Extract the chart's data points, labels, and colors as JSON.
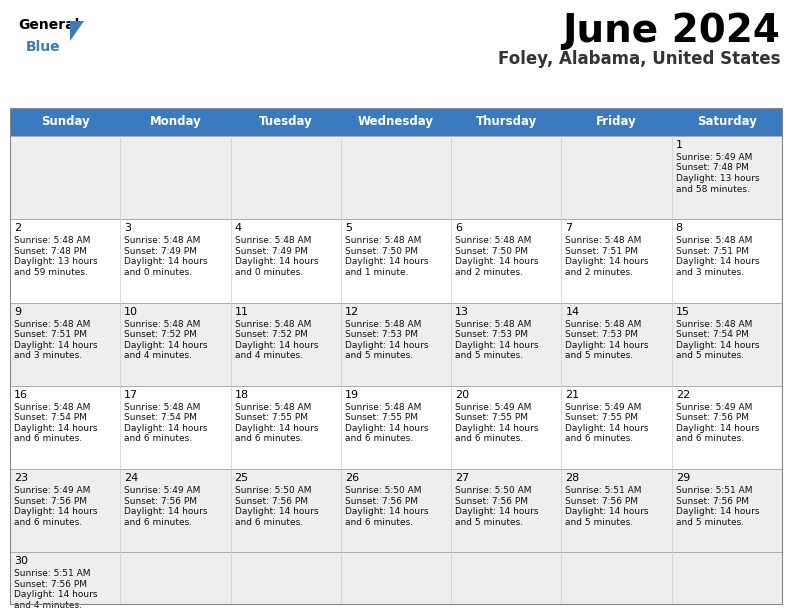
{
  "title": "June 2024",
  "subtitle": "Foley, Alabama, United States",
  "header_color": "#3a7bbf",
  "header_text_color": "#ffffff",
  "days_of_week": [
    "Sunday",
    "Monday",
    "Tuesday",
    "Wednesday",
    "Thursday",
    "Friday",
    "Saturday"
  ],
  "calendar": [
    [
      null,
      null,
      null,
      null,
      null,
      null,
      {
        "day": "1",
        "sunrise": "5:49 AM",
        "sunset": "7:48 PM",
        "daylight": "13 hours",
        "daylight2": "and 58 minutes."
      }
    ],
    [
      {
        "day": "2",
        "sunrise": "5:48 AM",
        "sunset": "7:48 PM",
        "daylight": "13 hours",
        "daylight2": "and 59 minutes."
      },
      {
        "day": "3",
        "sunrise": "5:48 AM",
        "sunset": "7:49 PM",
        "daylight": "14 hours",
        "daylight2": "and 0 minutes."
      },
      {
        "day": "4",
        "sunrise": "5:48 AM",
        "sunset": "7:49 PM",
        "daylight": "14 hours",
        "daylight2": "and 0 minutes."
      },
      {
        "day": "5",
        "sunrise": "5:48 AM",
        "sunset": "7:50 PM",
        "daylight": "14 hours",
        "daylight2": "and 1 minute."
      },
      {
        "day": "6",
        "sunrise": "5:48 AM",
        "sunset": "7:50 PM",
        "daylight": "14 hours",
        "daylight2": "and 2 minutes."
      },
      {
        "day": "7",
        "sunrise": "5:48 AM",
        "sunset": "7:51 PM",
        "daylight": "14 hours",
        "daylight2": "and 2 minutes."
      },
      {
        "day": "8",
        "sunrise": "5:48 AM",
        "sunset": "7:51 PM",
        "daylight": "14 hours",
        "daylight2": "and 3 minutes."
      }
    ],
    [
      {
        "day": "9",
        "sunrise": "5:48 AM",
        "sunset": "7:51 PM",
        "daylight": "14 hours",
        "daylight2": "and 3 minutes."
      },
      {
        "day": "10",
        "sunrise": "5:48 AM",
        "sunset": "7:52 PM",
        "daylight": "14 hours",
        "daylight2": "and 4 minutes."
      },
      {
        "day": "11",
        "sunrise": "5:48 AM",
        "sunset": "7:52 PM",
        "daylight": "14 hours",
        "daylight2": "and 4 minutes."
      },
      {
        "day": "12",
        "sunrise": "5:48 AM",
        "sunset": "7:53 PM",
        "daylight": "14 hours",
        "daylight2": "and 5 minutes."
      },
      {
        "day": "13",
        "sunrise": "5:48 AM",
        "sunset": "7:53 PM",
        "daylight": "14 hours",
        "daylight2": "and 5 minutes."
      },
      {
        "day": "14",
        "sunrise": "5:48 AM",
        "sunset": "7:53 PM",
        "daylight": "14 hours",
        "daylight2": "and 5 minutes."
      },
      {
        "day": "15",
        "sunrise": "5:48 AM",
        "sunset": "7:54 PM",
        "daylight": "14 hours",
        "daylight2": "and 5 minutes."
      }
    ],
    [
      {
        "day": "16",
        "sunrise": "5:48 AM",
        "sunset": "7:54 PM",
        "daylight": "14 hours",
        "daylight2": "and 6 minutes."
      },
      {
        "day": "17",
        "sunrise": "5:48 AM",
        "sunset": "7:54 PM",
        "daylight": "14 hours",
        "daylight2": "and 6 minutes."
      },
      {
        "day": "18",
        "sunrise": "5:48 AM",
        "sunset": "7:55 PM",
        "daylight": "14 hours",
        "daylight2": "and 6 minutes."
      },
      {
        "day": "19",
        "sunrise": "5:48 AM",
        "sunset": "7:55 PM",
        "daylight": "14 hours",
        "daylight2": "and 6 minutes."
      },
      {
        "day": "20",
        "sunrise": "5:49 AM",
        "sunset": "7:55 PM",
        "daylight": "14 hours",
        "daylight2": "and 6 minutes."
      },
      {
        "day": "21",
        "sunrise": "5:49 AM",
        "sunset": "7:55 PM",
        "daylight": "14 hours",
        "daylight2": "and 6 minutes."
      },
      {
        "day": "22",
        "sunrise": "5:49 AM",
        "sunset": "7:56 PM",
        "daylight": "14 hours",
        "daylight2": "and 6 minutes."
      }
    ],
    [
      {
        "day": "23",
        "sunrise": "5:49 AM",
        "sunset": "7:56 PM",
        "daylight": "14 hours",
        "daylight2": "and 6 minutes."
      },
      {
        "day": "24",
        "sunrise": "5:49 AM",
        "sunset": "7:56 PM",
        "daylight": "14 hours",
        "daylight2": "and 6 minutes."
      },
      {
        "day": "25",
        "sunrise": "5:50 AM",
        "sunset": "7:56 PM",
        "daylight": "14 hours",
        "daylight2": "and 6 minutes."
      },
      {
        "day": "26",
        "sunrise": "5:50 AM",
        "sunset": "7:56 PM",
        "daylight": "14 hours",
        "daylight2": "and 6 minutes."
      },
      {
        "day": "27",
        "sunrise": "5:50 AM",
        "sunset": "7:56 PM",
        "daylight": "14 hours",
        "daylight2": "and 5 minutes."
      },
      {
        "day": "28",
        "sunrise": "5:51 AM",
        "sunset": "7:56 PM",
        "daylight": "14 hours",
        "daylight2": "and 5 minutes."
      },
      {
        "day": "29",
        "sunrise": "5:51 AM",
        "sunset": "7:56 PM",
        "daylight": "14 hours",
        "daylight2": "and 5 minutes."
      }
    ],
    [
      {
        "day": "30",
        "sunrise": "5:51 AM",
        "sunset": "7:56 PM",
        "daylight": "14 hours",
        "daylight2": "and 4 minutes."
      },
      null,
      null,
      null,
      null,
      null,
      null
    ]
  ]
}
